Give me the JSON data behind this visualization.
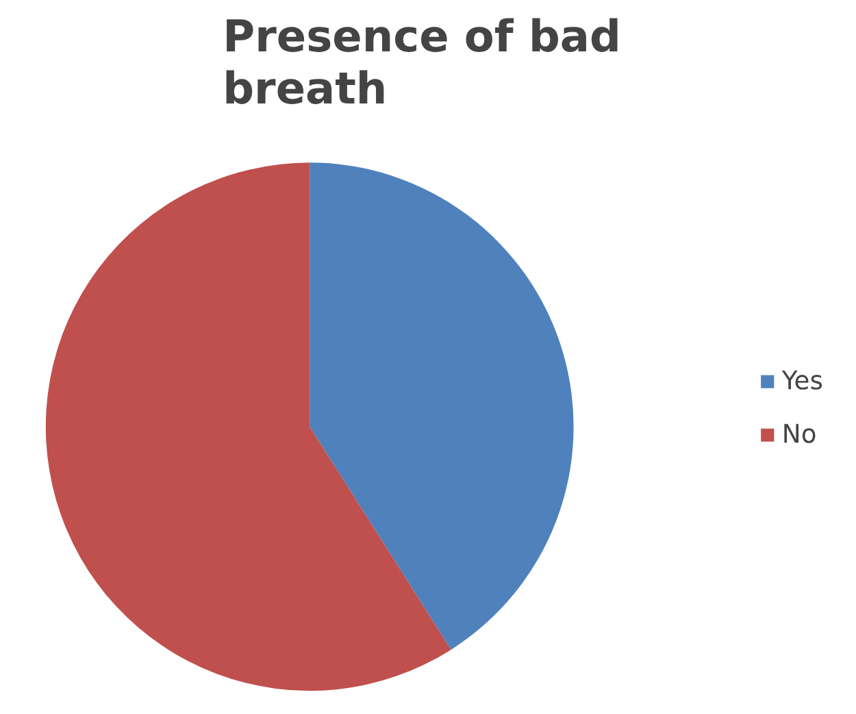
{
  "chart_data": {
    "type": "pie",
    "title": "Presence of bad breath",
    "categories": [
      "Yes",
      "No"
    ],
    "values": [
      41,
      59
    ],
    "colors": [
      "#4f81bd",
      "#c0504d"
    ],
    "legend": "right"
  }
}
